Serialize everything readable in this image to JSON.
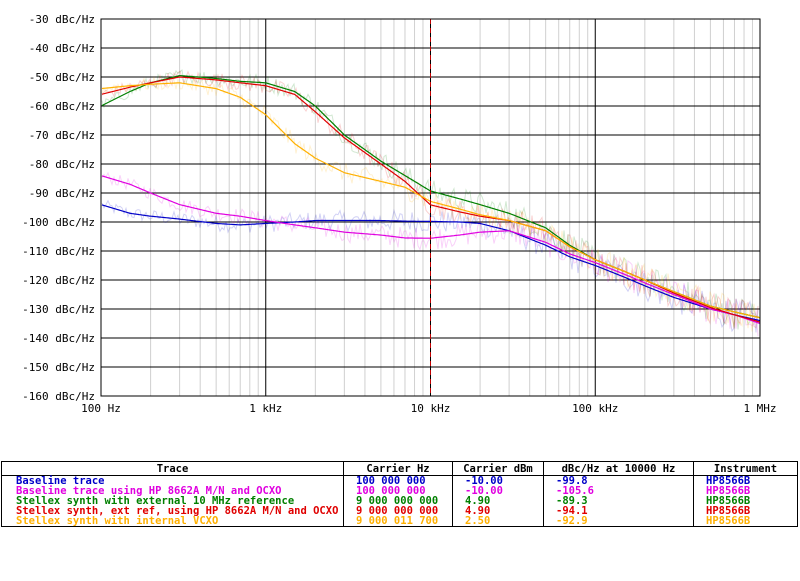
{
  "chart_data": {
    "type": "line",
    "title": "",
    "xlabel": "",
    "ylabel": "",
    "x_scale": "log",
    "xlim": [
      100,
      1000000
    ],
    "ylim": [
      -160,
      -30
    ],
    "grid": true,
    "x_ticks": [
      "100 Hz",
      "1 kHz",
      "10 kHz",
      "100 kHz",
      "1 MHz"
    ],
    "y_ticks": [
      "-30 dBc/Hz",
      "-40 dBc/Hz",
      "-50 dBc/Hz",
      "-60 dBc/Hz",
      "-70 dBc/Hz",
      "-80 dBc/Hz",
      "-90 dBc/Hz",
      "-100 dBc/Hz",
      "-110 dBc/Hz",
      "-120 dBc/Hz",
      "-130 dBc/Hz",
      "-140 dBc/Hz",
      "-150 dBc/Hz",
      "-160 dBc/Hz"
    ],
    "marker_x": 10000,
    "colors": {
      "grid": "#000000",
      "background": "#ffffff",
      "marker": "#c00000"
    },
    "series": [
      {
        "name": "Baseline trace",
        "color": "#0000c8",
        "x": [
          100,
          150,
          200,
          300,
          500,
          700,
          1000,
          1500,
          2000,
          3000,
          5000,
          7000,
          10000,
          15000,
          20000,
          30000,
          50000,
          70000,
          100000,
          150000,
          200000,
          300000,
          500000,
          700000,
          1000000
        ],
        "y": [
          -94,
          -97,
          -98,
          -99,
          -100.5,
          -101,
          -100.5,
          -100,
          -99.5,
          -99.5,
          -99.5,
          -99.7,
          -99.8,
          -100,
          -100.5,
          -103,
          -108,
          -112,
          -115,
          -119,
          -122,
          -126,
          -130,
          -132,
          -134
        ]
      },
      {
        "name": "Baseline trace using HP 8662A M/N and OCXO",
        "color": "#e000e0",
        "x": [
          100,
          150,
          200,
          300,
          500,
          700,
          1000,
          1500,
          2000,
          3000,
          5000,
          7000,
          10000,
          15000,
          20000,
          30000,
          50000,
          70000,
          100000,
          150000,
          200000,
          300000,
          500000,
          700000,
          1000000
        ],
        "y": [
          -84,
          -87,
          -90,
          -94,
          -97,
          -98,
          -99.5,
          -101,
          -102,
          -103.5,
          -104.5,
          -105.5,
          -105.6,
          -104.5,
          -103.5,
          -103,
          -107,
          -111,
          -114,
          -118,
          -121,
          -125,
          -130,
          -132,
          -135
        ]
      },
      {
        "name": "Stellex synth with external 10 MHz reference",
        "color": "#008000",
        "x": [
          100,
          150,
          200,
          300,
          500,
          700,
          1000,
          1500,
          2000,
          3000,
          5000,
          7000,
          10000,
          15000,
          20000,
          30000,
          50000,
          70000,
          100000,
          150000,
          200000,
          300000,
          500000,
          700000,
          1000000
        ],
        "y": [
          -60,
          -55,
          -52,
          -49.5,
          -50.5,
          -51.5,
          -52,
          -55,
          -60,
          -70,
          -79,
          -84,
          -89.3,
          -92,
          -94,
          -97,
          -102,
          -108,
          -113,
          -117,
          -120,
          -124,
          -129,
          -131,
          -133
        ]
      },
      {
        "name": "Stellex synth, ext ref, using HP 8662A M/N and OCXO",
        "color": "#e00000",
        "x": [
          100,
          150,
          200,
          300,
          500,
          700,
          1000,
          1500,
          2000,
          3000,
          5000,
          7000,
          10000,
          15000,
          20000,
          30000,
          50000,
          70000,
          100000,
          150000,
          200000,
          300000,
          500000,
          700000,
          1000000
        ],
        "y": [
          -56,
          -53.5,
          -52,
          -50,
          -51,
          -52,
          -53,
          -56,
          -62,
          -71,
          -80,
          -86,
          -94.1,
          -96.5,
          -98,
          -99.5,
          -103,
          -108.5,
          -113,
          -117,
          -120,
          -124.5,
          -129.5,
          -132,
          -134.5
        ]
      },
      {
        "name": "Stellex synth with internal VCXO",
        "color": "#ffb000",
        "x": [
          100,
          150,
          200,
          300,
          500,
          700,
          1000,
          1500,
          2000,
          3000,
          5000,
          7000,
          10000,
          15000,
          20000,
          30000,
          50000,
          70000,
          100000,
          150000,
          200000,
          300000,
          500000,
          700000,
          1000000
        ],
        "y": [
          -54,
          -53,
          -52.5,
          -52,
          -54,
          -57,
          -63,
          -73,
          -78,
          -83,
          -86,
          -88,
          -92.9,
          -95.5,
          -97.5,
          -99.5,
          -103,
          -108.5,
          -113,
          -117,
          -120,
          -124,
          -129,
          -131,
          -133
        ]
      }
    ]
  },
  "legend": {
    "headers": {
      "trace": "Trace",
      "carrier_hz": "Carrier Hz",
      "carrier_dbm": "Carrier dBm",
      "dbc": "dBc/Hz at 10000 Hz",
      "instrument": "Instrument"
    },
    "rows": [
      {
        "trace": "Baseline trace",
        "carrier_hz": "100 000 000",
        "carrier_dbm": "-10.00",
        "dbc": "-99.8",
        "instrument": "HP8566B",
        "color": "#0000c8"
      },
      {
        "trace": "Baseline trace using HP 8662A M/N and OCXO",
        "carrier_hz": "100 000 000",
        "carrier_dbm": "-10.00",
        "dbc": "-105.6",
        "instrument": "HP8566B",
        "color": "#e000e0"
      },
      {
        "trace": "Stellex synth with external 10 MHz reference",
        "carrier_hz": "9 000 000 000",
        "carrier_dbm": "4.90",
        "dbc": "-89.3",
        "instrument": "HP8566B",
        "color": "#008000"
      },
      {
        "trace": "Stellex synth, ext ref, using HP 8662A M/N and OCXO",
        "carrier_hz": "9 000 000 000",
        "carrier_dbm": "4.90",
        "dbc": "-94.1",
        "instrument": "HP8566B",
        "color": "#e00000"
      },
      {
        "trace": "Stellex synth with internal VCXO",
        "carrier_hz": "9 000 011 700",
        "carrier_dbm": "2.50",
        "dbc": "-92.9",
        "instrument": "HP8566B",
        "color": "#ffb000"
      }
    ]
  }
}
